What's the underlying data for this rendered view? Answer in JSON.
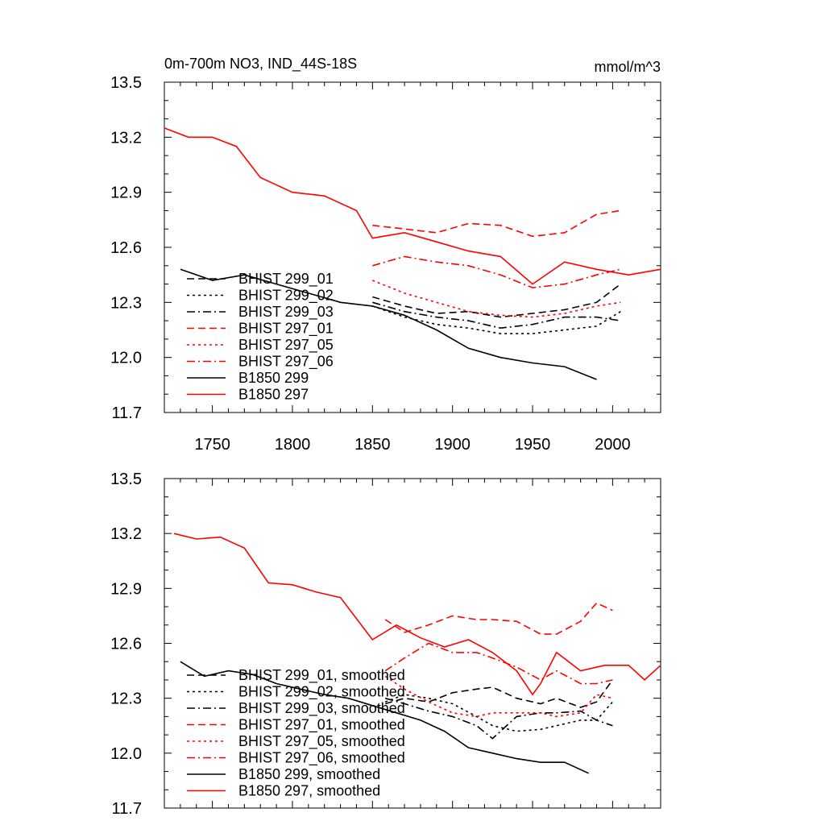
{
  "chart_data": [
    {
      "type": "line",
      "title": "0m-700m NO3, IND_44S-18S",
      "units": "mmol/m^3",
      "xlim": [
        1720,
        2030
      ],
      "ylim": [
        11.7,
        13.5
      ],
      "x_ticks": [
        1750,
        1800,
        1850,
        1900,
        1950,
        2000
      ],
      "y_ticks": [
        "11.7",
        "12.0",
        "12.3",
        "12.6",
        "12.9",
        "13.2",
        "13.5"
      ],
      "x_tick_labels_shown": true,
      "legend": "left",
      "series": [
        {
          "name": "BHIST 299_01",
          "color": "#000000",
          "dash": "dash",
          "x": [
            1850,
            1870,
            1890,
            1910,
            1930,
            1950,
            1970,
            1990,
            2005
          ],
          "y": [
            12.33,
            12.28,
            12.24,
            12.25,
            12.22,
            12.24,
            12.26,
            12.3,
            12.4
          ]
        },
        {
          "name": "BHIST 299_02",
          "color": "#000000",
          "dash": "dot",
          "x": [
            1850,
            1870,
            1890,
            1910,
            1930,
            1950,
            1970,
            1990,
            2005
          ],
          "y": [
            12.28,
            12.22,
            12.18,
            12.16,
            12.13,
            12.13,
            12.15,
            12.17,
            12.25
          ]
        },
        {
          "name": "BHIST 299_03",
          "color": "#000000",
          "dash": "dashdot",
          "x": [
            1850,
            1870,
            1890,
            1910,
            1930,
            1950,
            1970,
            1990,
            2005
          ],
          "y": [
            12.3,
            12.25,
            12.22,
            12.2,
            12.16,
            12.18,
            12.22,
            12.22,
            12.2
          ]
        },
        {
          "name": "BHIST 297_01",
          "color": "#ff0000",
          "dash": "dash",
          "x": [
            1850,
            1870,
            1890,
            1910,
            1930,
            1950,
            1970,
            1990,
            2005
          ],
          "y": [
            12.72,
            12.7,
            12.68,
            12.73,
            12.72,
            12.66,
            12.68,
            12.78,
            12.8
          ]
        },
        {
          "name": "BHIST 297_05",
          "color": "#ff0000",
          "dash": "dot",
          "x": [
            1850,
            1870,
            1890,
            1910,
            1930,
            1950,
            1970,
            1990,
            2005
          ],
          "y": [
            12.42,
            12.35,
            12.3,
            12.25,
            12.23,
            12.22,
            12.24,
            12.28,
            12.3
          ]
        },
        {
          "name": "BHIST 297_06",
          "color": "#ff0000",
          "dash": "dashdot",
          "x": [
            1850,
            1870,
            1890,
            1910,
            1930,
            1950,
            1970,
            1990,
            2005
          ],
          "y": [
            12.5,
            12.55,
            12.52,
            12.5,
            12.45,
            12.38,
            12.4,
            12.45,
            12.48
          ]
        },
        {
          "name": "B1850 299",
          "color": "#000000",
          "dash": "solid",
          "x": [
            1730,
            1750,
            1770,
            1790,
            1810,
            1830,
            1850,
            1870,
            1890,
            1910,
            1930,
            1950,
            1970,
            1990
          ],
          "y": [
            12.48,
            12.42,
            12.45,
            12.4,
            12.35,
            12.3,
            12.28,
            12.23,
            12.15,
            12.05,
            12.0,
            11.97,
            11.95,
            11.88
          ]
        },
        {
          "name": "B1850 297",
          "color": "#ff0000",
          "dash": "solid",
          "x": [
            1720,
            1735,
            1750,
            1765,
            1780,
            1800,
            1820,
            1840,
            1850,
            1870,
            1890,
            1910,
            1930,
            1950,
            1970,
            1990,
            2010,
            2030
          ],
          "y": [
            13.25,
            13.2,
            13.2,
            13.15,
            12.98,
            12.9,
            12.88,
            12.8,
            12.65,
            12.68,
            12.63,
            12.58,
            12.55,
            12.4,
            12.52,
            12.48,
            12.45,
            12.48
          ]
        }
      ]
    },
    {
      "type": "line",
      "xlim": [
        1720,
        2030
      ],
      "ylim": [
        11.7,
        13.5
      ],
      "x_ticks": [
        1750,
        1800,
        1850,
        1900,
        1950,
        2000
      ],
      "y_ticks": [
        "11.7",
        "12.0",
        "12.3",
        "12.6",
        "12.9",
        "13.2",
        "13.5"
      ],
      "x_tick_labels_shown": false,
      "legend": "left",
      "series": [
        {
          "name": "BHIST 299_01, smoothed",
          "color": "#000000",
          "dash": "dash",
          "x": [
            1858,
            1870,
            1885,
            1900,
            1915,
            1925,
            1940,
            1955,
            1965,
            1980,
            1990,
            2000
          ],
          "y": [
            12.27,
            12.3,
            12.28,
            12.33,
            12.35,
            12.36,
            12.3,
            12.27,
            12.3,
            12.25,
            12.28,
            12.4
          ]
        },
        {
          "name": "BHIST 299_02, smoothed",
          "color": "#000000",
          "dash": "dot",
          "x": [
            1858,
            1870,
            1885,
            1900,
            1915,
            1925,
            1940,
            1955,
            1965,
            1980,
            1990,
            2000
          ],
          "y": [
            12.28,
            12.32,
            12.3,
            12.27,
            12.2,
            12.15,
            12.12,
            12.13,
            12.15,
            12.18,
            12.18,
            12.28
          ]
        },
        {
          "name": "BHIST 299_03, smoothed",
          "color": "#000000",
          "dash": "dashdot",
          "x": [
            1858,
            1870,
            1885,
            1900,
            1915,
            1925,
            1940,
            1955,
            1965,
            1980,
            1990,
            2000
          ],
          "y": [
            12.3,
            12.27,
            12.23,
            12.2,
            12.15,
            12.08,
            12.2,
            12.22,
            12.22,
            12.23,
            12.18,
            12.15
          ]
        },
        {
          "name": "BHIST 297_01, smoothed",
          "color": "#ff0000",
          "dash": "dash",
          "x": [
            1858,
            1870,
            1885,
            1900,
            1915,
            1925,
            1940,
            1955,
            1965,
            1980,
            1990,
            2000
          ],
          "y": [
            12.73,
            12.66,
            12.7,
            12.75,
            12.73,
            12.73,
            12.72,
            12.65,
            12.65,
            12.72,
            12.82,
            12.78
          ]
        },
        {
          "name": "BHIST 297_05, smoothed",
          "color": "#ff0000",
          "dash": "dot",
          "x": [
            1858,
            1870,
            1885,
            1900,
            1915,
            1925,
            1940,
            1955,
            1965,
            1980,
            1990,
            2000
          ],
          "y": [
            12.42,
            12.35,
            12.28,
            12.22,
            12.2,
            12.22,
            12.22,
            12.22,
            12.2,
            12.22,
            12.32,
            12.3
          ]
        },
        {
          "name": "BHIST 297_06, smoothed",
          "color": "#ff0000",
          "dash": "dashdot",
          "x": [
            1858,
            1870,
            1885,
            1900,
            1915,
            1925,
            1940,
            1955,
            1965,
            1980,
            1990,
            2000
          ],
          "y": [
            12.45,
            12.52,
            12.6,
            12.55,
            12.55,
            12.52,
            12.47,
            12.4,
            12.45,
            12.38,
            12.38,
            12.4
          ]
        },
        {
          "name": "B1850 299, smoothed",
          "color": "#000000",
          "dash": "solid",
          "x": [
            1730,
            1745,
            1760,
            1775,
            1790,
            1805,
            1820,
            1835,
            1850,
            1865,
            1880,
            1895,
            1910,
            1925,
            1940,
            1955,
            1970,
            1985
          ],
          "y": [
            12.5,
            12.42,
            12.45,
            12.43,
            12.38,
            12.35,
            12.32,
            12.3,
            12.26,
            12.22,
            12.18,
            12.12,
            12.03,
            12.0,
            11.97,
            11.95,
            11.95,
            11.89
          ]
        },
        {
          "name": "B1850 297, smoothed",
          "color": "#ff0000",
          "dash": "solid",
          "x": [
            1726,
            1740,
            1755,
            1770,
            1785,
            1800,
            1815,
            1830,
            1850,
            1865,
            1880,
            1895,
            1910,
            1925,
            1940,
            1950,
            1955,
            1965,
            1980,
            1995,
            2010,
            2020,
            2030
          ],
          "y": [
            13.2,
            13.17,
            13.18,
            13.12,
            12.93,
            12.92,
            12.88,
            12.85,
            12.62,
            12.7,
            12.63,
            12.58,
            12.62,
            12.55,
            12.45,
            12.32,
            12.38,
            12.55,
            12.45,
            12.48,
            12.48,
            12.4,
            12.48
          ]
        }
      ]
    }
  ]
}
